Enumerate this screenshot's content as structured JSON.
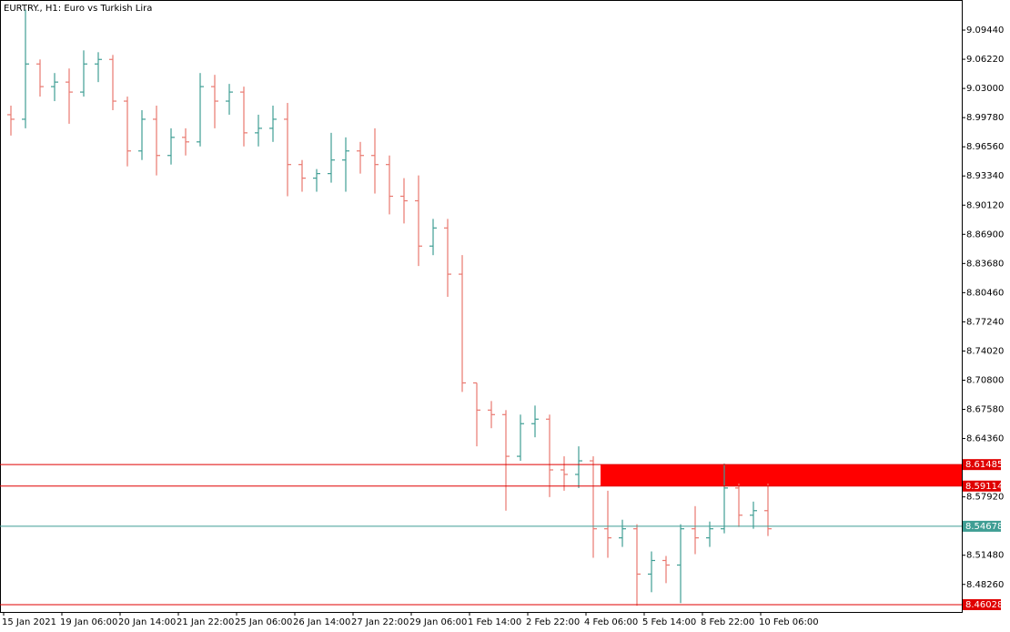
{
  "chart_data": {
    "type": "ohlc",
    "title": "EURTRY., H1:  Euro vs Turkish Lira",
    "up_color": "#3f9e94",
    "down_color": "#e9786f",
    "categories": [
      "15 Jan 2021",
      null,
      null,
      null,
      "19 Jan 06:00",
      null,
      null,
      null,
      "20 Jan 14:00",
      null,
      null,
      null,
      "21 Jan 22:00",
      null,
      null,
      null,
      "25 Jan 06:00",
      null,
      null,
      null,
      "26 Jan 14:00",
      null,
      null,
      null,
      "27 Jan 22:00",
      null,
      null,
      null,
      "29 Jan 06:00",
      null,
      null,
      null,
      "1 Feb 14:00",
      null,
      null,
      null,
      "2 Feb 22:00",
      null,
      null,
      null,
      "4 Feb 06:00",
      null,
      null,
      null,
      "5 Feb 14:00",
      null,
      null,
      null,
      "8 Feb 22:00",
      null,
      null,
      null,
      "10 Feb 06:00"
    ],
    "open": [
      9.001,
      8.996,
      9.057,
      9.032,
      9.037,
      9.026,
      9.057,
      9.062,
      9.016,
      8.961,
      8.996,
      8.956,
      8.976,
      8.971,
      9.032,
      9.016,
      9.026,
      8.981,
      8.986,
      8.996,
      8.946,
      8.931,
      8.936,
      8.951,
      8.961,
      8.956,
      8.946,
      8.911,
      8.906,
      8.856,
      8.876,
      8.825,
      8.705,
      8.675,
      8.67,
      8.624,
      8.66,
      8.665,
      8.609,
      8.604,
      8.619,
      8.544,
      8.534,
      8.544,
      8.494,
      8.509,
      8.504,
      8.544,
      8.534,
      8.544,
      8.589,
      8.559,
      8.564
    ],
    "high": [
      9.011,
      9.117,
      9.062,
      9.047,
      9.052,
      9.072,
      9.07,
      9.067,
      9.021,
      9.006,
      9.011,
      8.986,
      8.986,
      9.047,
      9.045,
      9.035,
      9.032,
      9.001,
      9.011,
      9.014,
      8.951,
      8.941,
      8.981,
      8.976,
      8.971,
      8.986,
      8.956,
      8.931,
      8.934,
      8.886,
      8.886,
      8.846,
      8.705,
      8.685,
      8.675,
      8.67,
      8.68,
      8.67,
      8.624,
      8.635,
      8.624,
      8.586,
      8.554,
      8.549,
      8.519,
      8.514,
      8.549,
      8.569,
      8.552,
      8.616,
      8.594,
      8.574,
      8.594
    ],
    "low": [
      8.978,
      8.986,
      9.021,
      9.016,
      8.991,
      9.021,
      9.037,
      9.006,
      8.944,
      8.951,
      8.934,
      8.946,
      8.956,
      8.966,
      8.986,
      9.001,
      8.966,
      8.966,
      8.971,
      8.911,
      8.916,
      8.916,
      8.926,
      8.916,
      8.936,
      8.914,
      8.891,
      8.881,
      8.834,
      8.846,
      8.8,
      8.695,
      8.635,
      8.655,
      8.564,
      8.619,
      8.645,
      8.579,
      8.586,
      8.589,
      8.512,
      8.512,
      8.524,
      8.459,
      8.474,
      8.484,
      8.462,
      8.516,
      8.524,
      8.539,
      8.546,
      8.544,
      8.536
    ],
    "close": [
      8.996,
      9.057,
      9.032,
      9.037,
      9.026,
      9.057,
      9.062,
      9.016,
      8.961,
      8.996,
      8.956,
      8.976,
      8.971,
      9.032,
      9.016,
      9.026,
      8.981,
      8.986,
      8.996,
      8.946,
      8.931,
      8.936,
      8.951,
      8.961,
      8.956,
      8.946,
      8.911,
      8.906,
      8.856,
      8.876,
      8.825,
      8.705,
      8.675,
      8.67,
      8.624,
      8.66,
      8.665,
      8.609,
      8.604,
      8.619,
      8.544,
      8.534,
      8.544,
      8.494,
      8.509,
      8.504,
      8.544,
      8.534,
      8.544,
      8.589,
      8.559,
      8.564,
      8.544
    ],
    "ylim": [
      8.4522,
      9.1276
    ],
    "yticks": [
      {
        "value": 9.0944,
        "label": "9.09440"
      },
      {
        "value": 9.0622,
        "label": "9.06220"
      },
      {
        "value": 9.03,
        "label": "9.03000"
      },
      {
        "value": 8.9978,
        "label": "8.99780"
      },
      {
        "value": 8.9656,
        "label": "8.96560"
      },
      {
        "value": 8.9334,
        "label": "8.93340"
      },
      {
        "value": 8.9012,
        "label": "8.90120"
      },
      {
        "value": 8.869,
        "label": "8.86900"
      },
      {
        "value": 8.8368,
        "label": "8.83680"
      },
      {
        "value": 8.8046,
        "label": "8.80460"
      },
      {
        "value": 8.7724,
        "label": "8.77240"
      },
      {
        "value": 8.7402,
        "label": "8.74020"
      },
      {
        "value": 8.708,
        "label": "8.70800"
      },
      {
        "value": 8.6758,
        "label": "8.67580"
      },
      {
        "value": 8.6436,
        "label": "8.64360"
      },
      {
        "value": 8.5792,
        "label": "8.57920"
      },
      {
        "value": 8.5148,
        "label": "8.51480"
      },
      {
        "value": 8.4826,
        "label": "8.48260"
      }
    ],
    "grid": false,
    "levels": [
      {
        "value": 8.61485,
        "color": "#e00000"
      },
      {
        "value": 8.59114,
        "color": "#e00000"
      },
      {
        "value": 8.54678,
        "color": "#3f9e94"
      },
      {
        "value": 8.46028,
        "color": "#e00000"
      }
    ],
    "zone_color": "#ff0000"
  }
}
